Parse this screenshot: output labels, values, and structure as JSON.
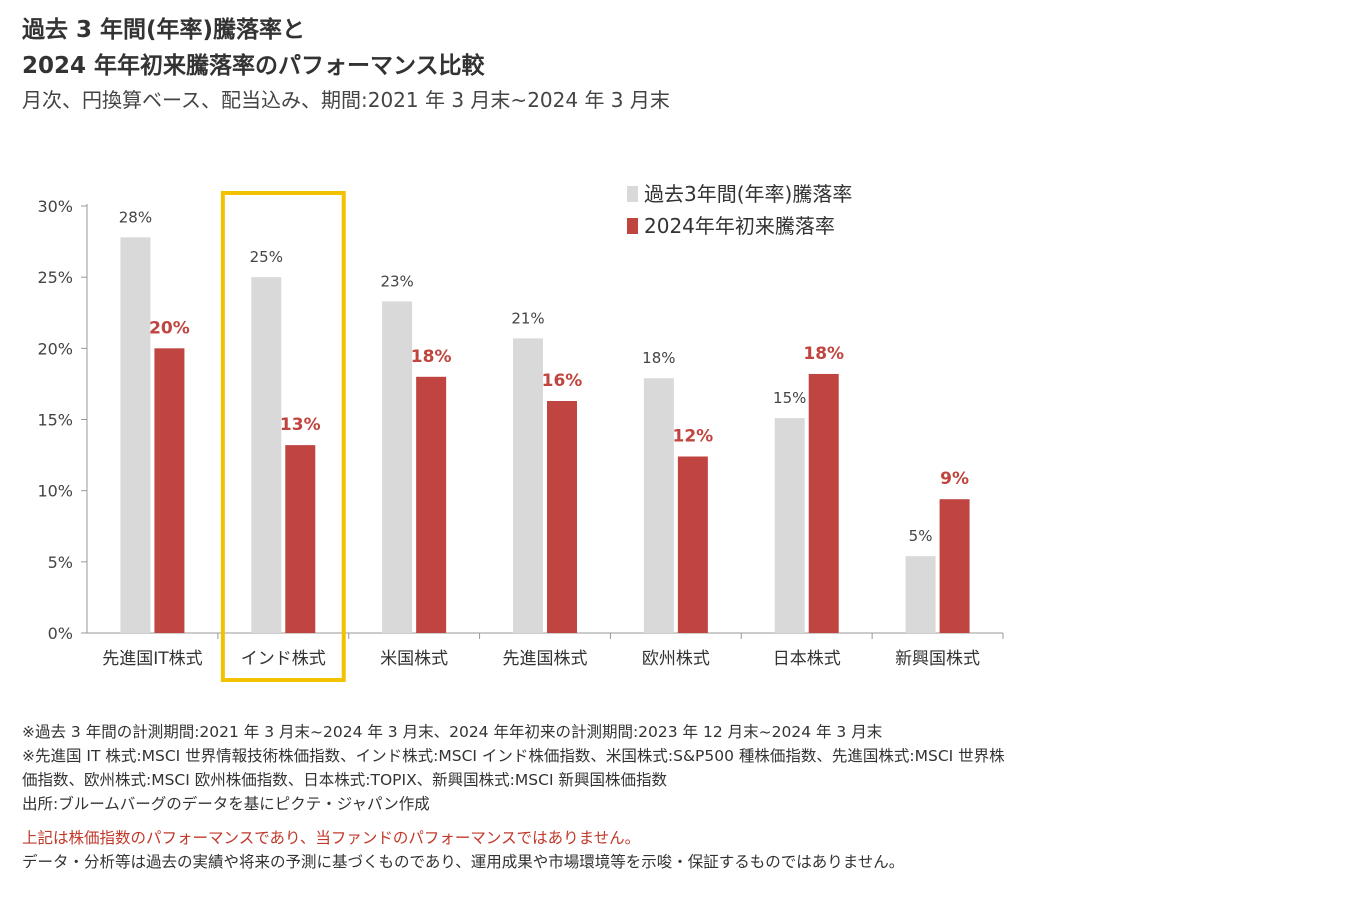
{
  "header": {
    "title_line1": "過去 3 年間(年率)騰落率と",
    "title_line2": "2024 年年初来騰落率のパフォーマンス比較",
    "subtitle": "月次、円換算ベース、配当込み、期間:2021 年 3 月末~2024 年 3 月末"
  },
  "chart_data": {
    "type": "bar",
    "categories": [
      "先進国IT株式",
      "インド株式",
      "米国株式",
      "先進国株式",
      "欧州株式",
      "日本株式",
      "新興国株式"
    ],
    "series": [
      {
        "name": "過去3年間(年率)騰落率",
        "values": [
          27.8,
          25.0,
          23.3,
          20.7,
          17.9,
          15.1,
          5.4
        ],
        "labels": [
          "28%",
          "25%",
          "23%",
          "21%",
          "18%",
          "15%",
          "5%"
        ],
        "color": "#d9d9d9"
      },
      {
        "name": "2024年年初来騰落率",
        "values": [
          20.0,
          13.2,
          18.0,
          16.3,
          12.4,
          18.2,
          9.4
        ],
        "labels": [
          "20%",
          "13%",
          "18%",
          "16%",
          "12%",
          "18%",
          "9%"
        ],
        "color": "#c0443f"
      }
    ],
    "yticks": [
      "0%",
      "5%",
      "10%",
      "15%",
      "20%",
      "25%",
      "30%"
    ],
    "ylim": [
      0,
      30
    ],
    "highlight_category": "インド株式",
    "highlight_color": "#f2c200",
    "legend_position": "top-right",
    "grid": false
  },
  "notes": {
    "line1": "※過去 3 年間の計測期間:2021 年 3 月末~2024 年 3 月末、2024 年年初来の計測期間:2023 年 12 月末~2024 年 3 月末",
    "line2": "※先進国 IT 株式:MSCI 世界情報技術株価指数、インド株式:MSCI インド株価指数、米国株式:S&P500 種株価指数、先進国株式:MSCI 世界株",
    "line3": "価指数、欧州株式:MSCI 欧州株価指数、日本株式:TOPIX、新興国株式:MSCI 新興国株価指数",
    "line4": "出所:ブルームバーグのデータを基にピクテ・ジャパン作成",
    "disclaimer1": "上記は株価指数のパフォーマンスであり、当ファンドのパフォーマンスではありません。",
    "disclaimer2": "データ・分析等は過去の実績や将来の予測に基づくものであり、運用成果や市場環境等を示唆・保証するものではありません。"
  }
}
